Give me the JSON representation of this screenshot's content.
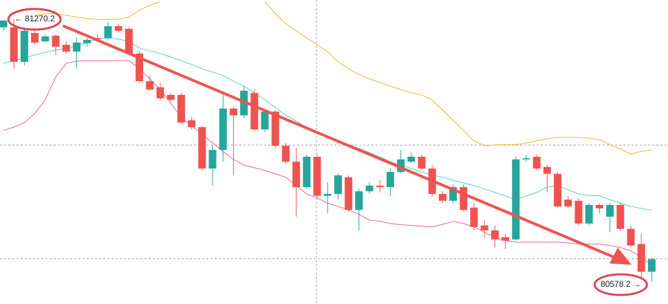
{
  "chart_data": {
    "type": "candlestick",
    "ylim": [
      80520,
      81321
    ],
    "up_color": "#26a69a",
    "down_color": "#ef5350",
    "open": [
      81249,
      81249,
      81158,
      81234,
      81212,
      81227,
      81203,
      81185,
      81207,
      81221,
      81221,
      81252,
      81245,
      81180,
      81107,
      81091,
      81071,
      81071,
      81004,
      80986,
      80877,
      80926,
      81035,
      81017,
      81076,
      80980,
      81027,
      80937,
      80895,
      80828,
      80908,
      80805,
      80810,
      80854,
      80768,
      80817,
      80832,
      80828,
      80868,
      80895,
      80908,
      80877,
      80810,
      80792,
      80828,
      80774,
      80727,
      80714,
      80696,
      80690,
      80901,
      80908,
      80881,
      80863,
      80795,
      80792,
      80732,
      80781,
      80750,
      80781,
      80718,
      80678,
      80605
    ],
    "high": [
      81267,
      81270.2,
      81249,
      81245,
      81230,
      81230,
      81212,
      81221,
      81221,
      81230,
      81263,
      81258,
      81249,
      81185,
      81122,
      81104,
      81076,
      81076,
      81013,
      80989,
      80940,
      81076,
      81040,
      81094,
      81085,
      81031,
      81031,
      80944,
      80931,
      80913,
      80913,
      80841,
      80864,
      80859,
      80823,
      80841,
      80846,
      80877,
      80926,
      80919,
      80913,
      80886,
      80817,
      80835,
      80835,
      80786,
      80741,
      80727,
      80705,
      80908,
      80913,
      80913,
      80886,
      80868,
      80805,
      80799,
      80786,
      80786,
      80786,
      80786,
      80727,
      80705,
      80642
    ],
    "low": [
      81240,
      81140,
      81149,
      81203,
      81209,
      81176,
      81180,
      81140,
      81198,
      81212,
      81216,
      81234,
      81176,
      81104,
      81082,
      81058,
      81053,
      80995,
      80980,
      80872,
      80832,
      80895,
      80859,
      81009,
      80977,
      80973,
      80931,
      80890,
      80750,
      80823,
      80799,
      80759,
      80795,
      80763,
      80714,
      80810,
      80814,
      80805,
      80864,
      80890,
      80872,
      80805,
      80786,
      80786,
      80763,
      80714,
      80696,
      80669,
      80665,
      80687,
      80895,
      80872,
      80814,
      80774,
      80772,
      80727,
      80727,
      80759,
      80709,
      80712,
      80669,
      80587,
      80578.2
    ],
    "close": [
      81267,
      81158,
      81240,
      81209,
      81225,
      81198,
      81185,
      81209,
      81216,
      81218,
      81252,
      81240,
      81180,
      81107,
      81085,
      81062,
      81058,
      80998,
      80986,
      80877,
      80926,
      81035,
      81017,
      81082,
      80980,
      81027,
      80937,
      80895,
      80828,
      80908,
      80805,
      80810,
      80859,
      80768,
      80817,
      80832,
      80828,
      80868,
      80901,
      80908,
      80877,
      80810,
      80792,
      80828,
      80768,
      80723,
      80714,
      80690,
      80687,
      80901,
      80904,
      80877,
      80863,
      80777,
      80777,
      80732,
      80781,
      80772,
      80781,
      80718,
      80674,
      80605,
      80638
    ],
    "lines": [
      {
        "color": "#f0b429",
        "values": [
          null,
          null,
          null,
          81281,
          81285,
          81285,
          81281,
          81276,
          81272,
          81270,
          81270,
          81270,
          81276,
          81294,
          81307,
          81316,
          null,
          null,
          null,
          null,
          null,
          null,
          null,
          null,
          null,
          81317,
          81285,
          81258,
          81240,
          81221,
          81203,
          81185,
          81158,
          81140,
          81125,
          81113,
          81104,
          81094,
          81085,
          81076,
          81071,
          81058,
          81031,
          81004,
          80977,
          80950,
          80937,
          80939,
          80940,
          80940,
          80944,
          80950,
          80955,
          80959,
          80959,
          80959,
          80957,
          80953,
          80940,
          80928,
          80915,
          80922,
          80926
        ]
      },
      {
        "color": "#4fd1b5",
        "values": [
          81154,
          81161,
          81169,
          81176,
          81183,
          81189,
          81194,
          81200,
          81209,
          81218,
          81221,
          81218,
          81212,
          81194,
          81187,
          81180,
          81171,
          81161,
          81151,
          81140,
          81131,
          81122,
          81107,
          81094,
          81076,
          81058,
          81038,
          81017,
          81002,
          80986,
          80973,
          80962,
          80951,
          80940,
          80930,
          80919,
          80908,
          80895,
          80886,
          80877,
          80868,
          80859,
          80854,
          80846,
          80839,
          80832,
          80823,
          80814,
          80805,
          80795,
          80805,
          80814,
          80828,
          80832,
          80821,
          80810,
          80806,
          80805,
          80795,
          80786,
          80777,
          80772,
          80767
        ]
      },
      {
        "color": "#e5609a",
        "values": [
          80977,
          80986,
          80998,
          81022,
          81058,
          81118,
          81154,
          81160,
          81161,
          81161,
          81161,
          81161,
          81161,
          81140,
          81113,
          81085,
          81049,
          81013,
          80989,
          80968,
          80944,
          80922,
          80901,
          80886,
          80879,
          80872,
          80863,
          80854,
          80832,
          80810,
          80799,
          80786,
          80777,
          80768,
          80756,
          80741,
          80738,
          80732,
          80729,
          80727,
          80725,
          80723,
          80730,
          80738,
          80732,
          80723,
          80709,
          80696,
          80687,
          80683,
          80683,
          80683,
          80683,
          80683,
          80681,
          80678,
          80678,
          80678,
          80674,
          80669,
          80660,
          80642,
          80623
        ]
      }
    ],
    "price_labels": [
      {
        "value": 81270.2,
        "label": "← 81270.2"
      },
      {
        "value": 80578.2,
        "label": "80578.2 →"
      }
    ],
    "label_color": "#e0454f"
  }
}
